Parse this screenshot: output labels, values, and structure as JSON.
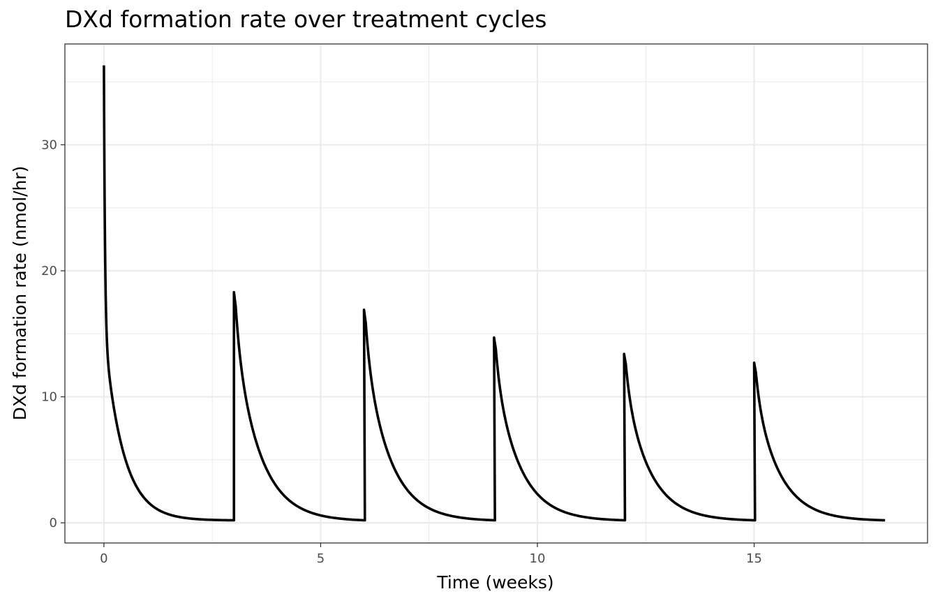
{
  "chart_data": {
    "type": "line",
    "title": "DXd formation rate over treatment cycles",
    "xlabel": "Time (weeks)",
    "ylabel": "DXd formation rate (nmol/hr)",
    "xlim": [
      -0.9,
      19.0
    ],
    "ylim": [
      -1.6,
      38.0
    ],
    "x_ticks": [
      0,
      5,
      10,
      15
    ],
    "y_ticks": [
      0,
      10,
      20,
      30
    ],
    "x_tick_labels": [
      "0",
      "5",
      "10",
      "15"
    ],
    "y_tick_labels": [
      "0",
      "10",
      "20",
      "30"
    ],
    "grid": true,
    "line_color": "#000000",
    "dosing_interval_weeks": 3,
    "cycles": [
      {
        "start": 0,
        "peak": 36.3,
        "trough": 0.2
      },
      {
        "start": 3,
        "peak": 18.3,
        "trough": 0.2
      },
      {
        "start": 6,
        "peak": 16.9,
        "trough": 0.2
      },
      {
        "start": 9,
        "peak": 14.7,
        "trough": 0.2
      },
      {
        "start": 12,
        "peak": 13.4,
        "trough": 0.2
      },
      {
        "start": 15,
        "peak": 12.7,
        "trough": 0.2
      }
    ],
    "end_time": 18
  }
}
